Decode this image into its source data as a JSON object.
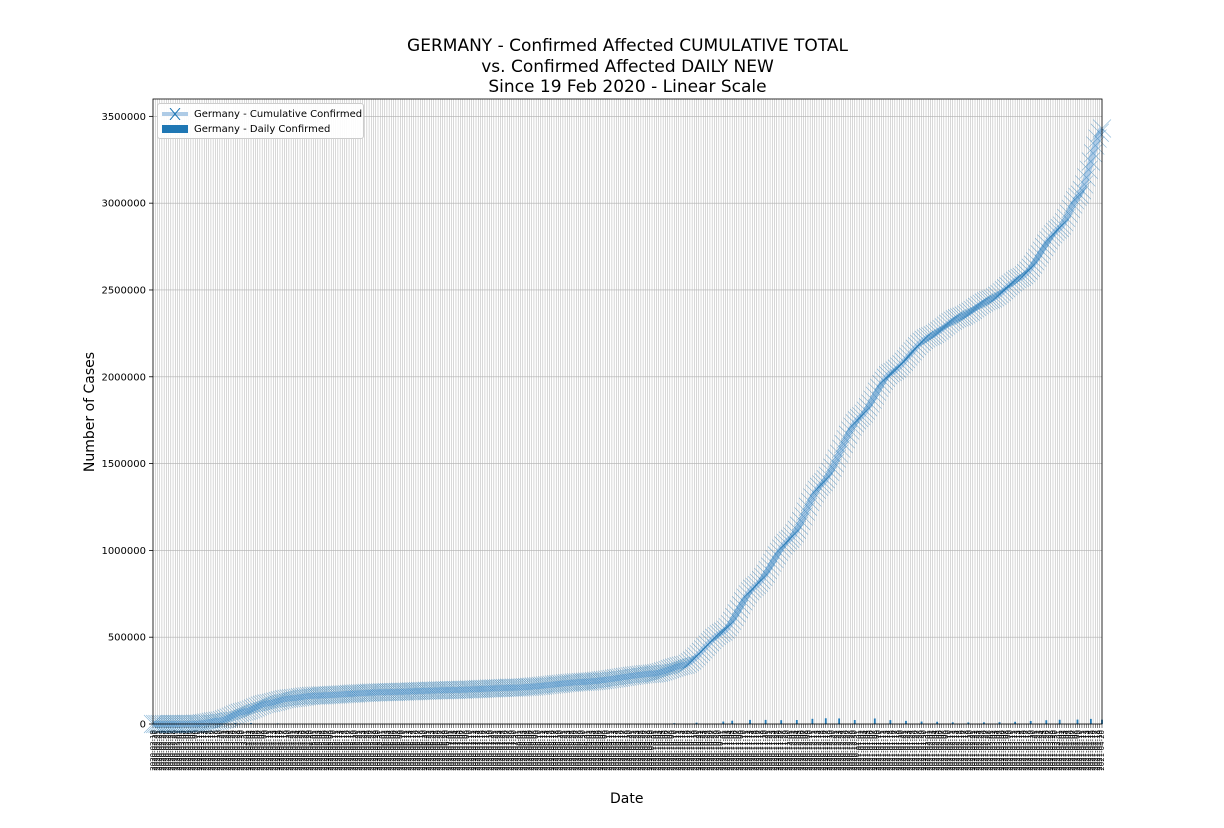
{
  "title_lines": [
    "GERMANY - Confirmed Affected CUMULATIVE TOTAL",
    "vs. Confirmed Affected DAILY NEW",
    "Since 19 Feb 2020 - Linear Scale"
  ],
  "legend": {
    "cumulative_label": "Germany - Cumulative Confirmed",
    "daily_label": "Germany - Daily Confirmed"
  },
  "colors": {
    "cumulative_line": "#aecbe6",
    "cumulative_marker": "#1f77b4",
    "daily_bar": "#1f77b4",
    "grid": "#b0b0b0"
  },
  "chart_data": {
    "type": "line",
    "title": "GERMANY - Confirmed Affected CUMULATIVE TOTAL vs. Confirmed Affected DAILY NEW Since 19 Feb 2020 - Linear Scale",
    "xlabel": "Date",
    "ylabel": "Number of Cases",
    "ylim": [
      0,
      3600000
    ],
    "yticks": [
      0,
      500000,
      1000000,
      1500000,
      2000000,
      2500000,
      3000000,
      3500000
    ],
    "ytick_labels": [
      "0",
      "500000",
      "1000000",
      "1500000",
      "2000000",
      "2500000",
      "3000000",
      "3500000"
    ],
    "xlim": [
      "2020-02-19",
      "2021-04-20"
    ],
    "x_tick_labels_note": "one rotated date label per day, illegible at this resolution",
    "grid": true,
    "legend_position": "top-left",
    "series": [
      {
        "name": "Germany - Cumulative Confirmed",
        "kind": "line-with-x-markers",
        "points": [
          [
            "2020-02-19",
            16
          ],
          [
            "2020-03-01",
            130
          ],
          [
            "2020-03-10",
            1450
          ],
          [
            "2020-03-20",
            19800
          ],
          [
            "2020-03-31",
            71800
          ],
          [
            "2020-04-10",
            118000
          ],
          [
            "2020-04-20",
            147000
          ],
          [
            "2020-05-01",
            163000
          ],
          [
            "2020-06-01",
            183000
          ],
          [
            "2020-07-01",
            195000
          ],
          [
            "2020-08-01",
            210000
          ],
          [
            "2020-09-01",
            244000
          ],
          [
            "2020-10-01",
            291000
          ],
          [
            "2020-10-15",
            341000
          ],
          [
            "2020-11-01",
            532000
          ],
          [
            "2020-11-15",
            790000
          ],
          [
            "2020-12-01",
            1067000
          ],
          [
            "2020-12-15",
            1380000
          ],
          [
            "2021-01-01",
            1762000
          ],
          [
            "2021-01-15",
            2020000
          ],
          [
            "2021-02-01",
            2228000
          ],
          [
            "2021-02-15",
            2342000
          ],
          [
            "2021-03-01",
            2445000
          ],
          [
            "2021-03-15",
            2575000
          ],
          [
            "2021-04-01",
            2857000
          ],
          [
            "2021-04-10",
            3050000
          ],
          [
            "2021-04-20",
            3430000
          ]
        ]
      },
      {
        "name": "Germany - Daily Confirmed",
        "kind": "bar",
        "points": [
          [
            "2020-03-27",
            6300
          ],
          [
            "2020-04-03",
            6100
          ],
          [
            "2020-04-15",
            3500
          ],
          [
            "2020-05-01",
            1200
          ],
          [
            "2020-06-01",
            300
          ],
          [
            "2020-07-01",
            500
          ],
          [
            "2020-08-15",
            1400
          ],
          [
            "2020-09-15",
            1900
          ],
          [
            "2020-10-10",
            4700
          ],
          [
            "2020-10-20",
            7800
          ],
          [
            "2020-11-01",
            14000
          ],
          [
            "2020-11-05",
            19000
          ],
          [
            "2020-11-13",
            23500
          ],
          [
            "2020-11-20",
            23600
          ],
          [
            "2020-11-27",
            22000
          ],
          [
            "2020-12-04",
            23000
          ],
          [
            "2020-12-11",
            29800
          ],
          [
            "2020-12-17",
            33000
          ],
          [
            "2020-12-23",
            32000
          ],
          [
            "2020-12-30",
            22900
          ],
          [
            "2021-01-08",
            31800
          ],
          [
            "2021-01-15",
            22400
          ],
          [
            "2021-01-22",
            17900
          ],
          [
            "2021-01-29",
            14000
          ],
          [
            "2021-02-05",
            12900
          ],
          [
            "2021-02-12",
            9900
          ],
          [
            "2021-02-19",
            9100
          ],
          [
            "2021-02-26",
            9900
          ],
          [
            "2021-03-05",
            10600
          ],
          [
            "2021-03-12",
            12800
          ],
          [
            "2021-03-19",
            17500
          ],
          [
            "2021-03-26",
            21600
          ],
          [
            "2021-04-01",
            24300
          ],
          [
            "2021-04-09",
            25400
          ],
          [
            "2021-04-15",
            29400
          ],
          [
            "2021-04-20",
            24900
          ]
        ]
      }
    ]
  }
}
